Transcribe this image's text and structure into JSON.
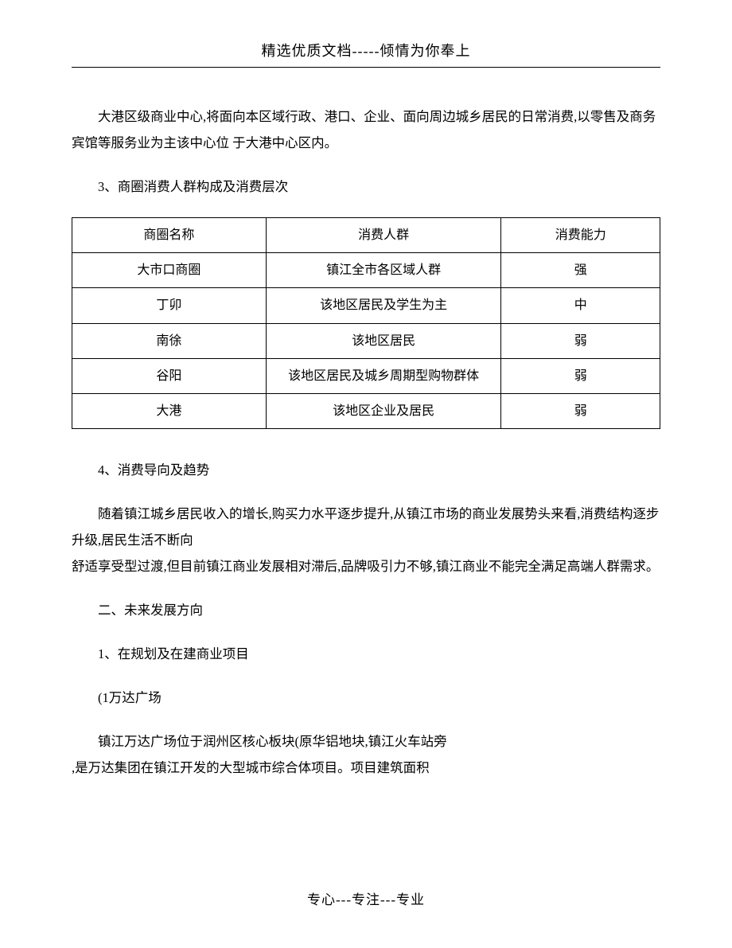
{
  "header": "精选优质文档-----倾情为你奉上",
  "footer": "专心---专注---专业",
  "paragraphs": {
    "p1": "大港区级商业中心,将面向本区域行政、港口、企业、面向周边城乡居民的日常消费,以零售及商务宾馆等服务业为主该中心位 于大港中心区内。",
    "p2": "3、商圈消费人群构成及消费层次",
    "p3": "4、消费导向及趋势",
    "p4a": "随着镇江城乡居民收入的增长,购买力水平逐步提升,从镇江市场的商业发展势头来看,消费结构逐步升级,居民生活不断向",
    "p4b": "舒适享受型过渡,但目前镇江商业发展相对滞后,品牌吸引力不够,镇江商业不能完全满足高端人群需求。",
    "p5": "二、未来发展方向",
    "p6": "1、在规划及在建商业项目",
    "p7": "(1万达广场",
    "p8a": "镇江万达广场位于润州区核心板块(原华铝地块,镇江火车站旁",
    "p8b": ",是万达集团在镇江开发的大型城市综合体项目。项目建筑面积"
  },
  "table": {
    "headers": [
      "商圈名称",
      "消费人群",
      "消费能力"
    ],
    "rows": [
      [
        "大市口商圈",
        "镇江全市各区域人群",
        "强"
      ],
      [
        "丁卯",
        "该地区居民及学生为主",
        "中"
      ],
      [
        "南徐",
        "该地区居民",
        "弱"
      ],
      [
        "谷阳",
        "该地区居民及城乡周期型购物群体",
        "弱"
      ],
      [
        "大港",
        "该地区企业及居民",
        "弱"
      ]
    ]
  },
  "styles": {
    "background_color": "#ffffff",
    "text_color": "#000000",
    "border_color": "#000000",
    "font_family": "SimSun",
    "body_fontsize": 16.5,
    "header_fontsize": 18,
    "table_fontsize": 16,
    "footer_fontsize": 17
  }
}
